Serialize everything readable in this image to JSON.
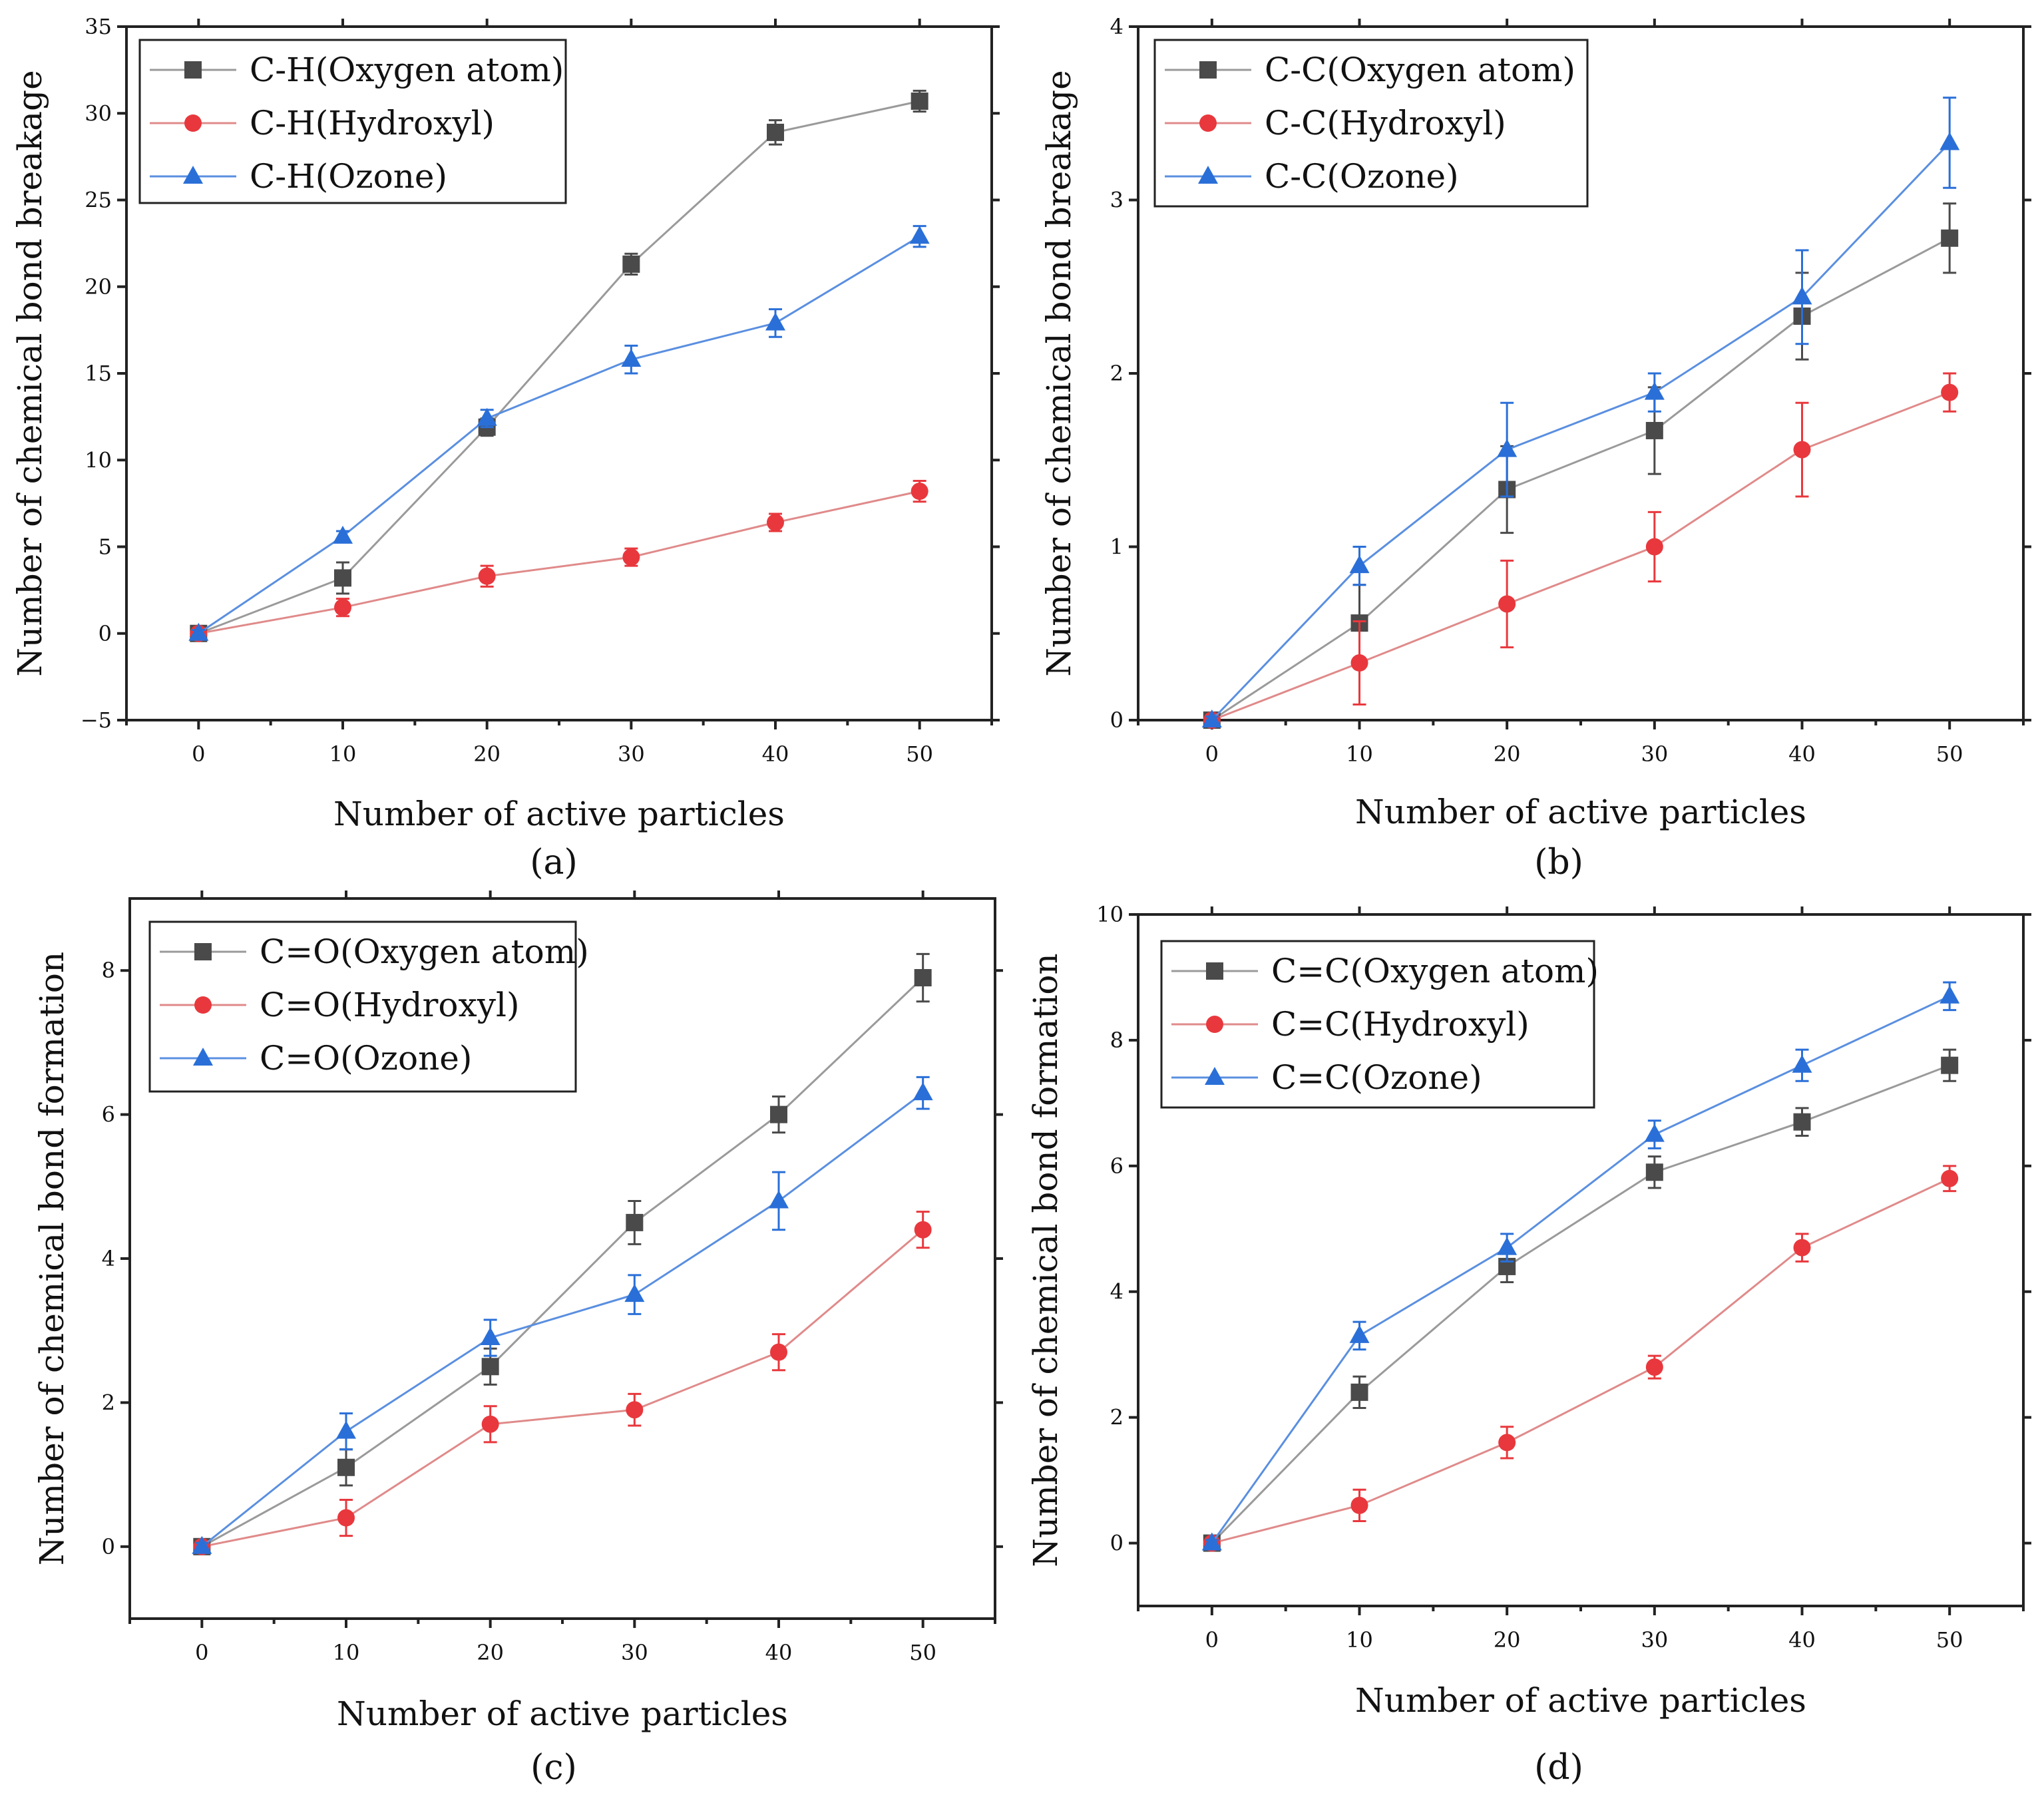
{
  "figure": {
    "panels": [
      {
        "id": "a",
        "caption": "(a)"
      },
      {
        "id": "b",
        "caption": "(b)"
      },
      {
        "id": "c",
        "caption": "(c)"
      },
      {
        "id": "d",
        "caption": "(d)"
      }
    ]
  },
  "series_style": {
    "Oxygen atom": {
      "line_color": "#9a9a9a",
      "marker_color": "#4a4a4a",
      "marker": "square"
    },
    "Hydroxyl": {
      "line_color": "#e08a8a",
      "marker_color": "#e8383d",
      "marker": "circle"
    },
    "Ozone": {
      "line_color": "#5a8fe0",
      "marker_color": "#2a6fd8",
      "marker": "triangle"
    }
  },
  "chart_data": [
    {
      "type": "line",
      "panel": "a",
      "title": "",
      "xlabel": "Number of active particles",
      "ylabel": "Number of chemical bond breakage",
      "x": [
        0,
        10,
        20,
        30,
        40,
        50
      ],
      "xlim": [
        -5,
        55
      ],
      "ylim": [
        -5,
        35
      ],
      "xticks": [
        0,
        10,
        20,
        30,
        40,
        50
      ],
      "yticks": [
        -5,
        0,
        5,
        10,
        15,
        20,
        25,
        30,
        35
      ],
      "ytick_labels": [
        "−5",
        "0",
        "5",
        "10",
        "15",
        "20",
        "25",
        "30",
        "35"
      ],
      "legend_position": "top-left",
      "series": [
        {
          "name": "C-H(Oxygen atom)",
          "key": "Oxygen atom",
          "values": [
            0,
            3.2,
            11.9,
            21.3,
            28.9,
            30.7
          ],
          "errors": [
            0.2,
            0.9,
            0.5,
            0.6,
            0.7,
            0.6
          ]
        },
        {
          "name": "C-H(Hydroxyl)",
          "key": "Hydroxyl",
          "values": [
            0,
            1.5,
            3.3,
            4.4,
            6.4,
            8.2
          ],
          "errors": [
            0.2,
            0.5,
            0.6,
            0.5,
            0.5,
            0.6
          ]
        },
        {
          "name": "C-H(Ozone)",
          "key": "Ozone",
          "values": [
            0,
            5.6,
            12.4,
            15.8,
            17.9,
            22.9
          ],
          "errors": [
            0.2,
            0.3,
            0.5,
            0.8,
            0.8,
            0.6
          ]
        }
      ]
    },
    {
      "type": "line",
      "panel": "b",
      "title": "",
      "xlabel": "Number of active particles",
      "ylabel": "Number of chemical bond breakage",
      "x": [
        0,
        10,
        20,
        30,
        40,
        50
      ],
      "xlim": [
        -5,
        55
      ],
      "ylim": [
        0,
        4
      ],
      "xticks": [
        0,
        10,
        20,
        30,
        40,
        50
      ],
      "yticks": [
        0,
        1,
        2,
        3,
        4
      ],
      "ytick_labels": [
        "0",
        "1",
        "2",
        "3",
        "4"
      ],
      "legend_position": "top-left",
      "series": [
        {
          "name": "C-C(Oxygen atom)",
          "key": "Oxygen atom",
          "values": [
            0,
            0.56,
            1.33,
            1.67,
            2.33,
            2.78
          ],
          "errors": [
            0.02,
            0.22,
            0.25,
            0.25,
            0.25,
            0.2
          ]
        },
        {
          "name": "C-C(Hydroxyl)",
          "key": "Hydroxyl",
          "values": [
            0,
            0.33,
            0.67,
            1.0,
            1.56,
            1.89
          ],
          "errors": [
            0.02,
            0.24,
            0.25,
            0.2,
            0.27,
            0.11
          ]
        },
        {
          "name": "C-C(Ozone)",
          "key": "Ozone",
          "values": [
            0,
            0.89,
            1.56,
            1.89,
            2.44,
            3.33
          ],
          "errors": [
            0.02,
            0.11,
            0.27,
            0.11,
            0.27,
            0.26
          ]
        }
      ]
    },
    {
      "type": "line",
      "panel": "c",
      "title": "",
      "xlabel": "Number of active particles",
      "ylabel": "Number of chemical bond formation",
      "x": [
        0,
        10,
        20,
        30,
        40,
        50
      ],
      "xlim": [
        -5,
        55
      ],
      "ylim": [
        -1,
        9
      ],
      "xticks": [
        0,
        10,
        20,
        30,
        40,
        50
      ],
      "yticks": [
        0,
        2,
        4,
        6,
        8
      ],
      "ytick_labels": [
        "0",
        "2",
        "4",
        "6",
        "8"
      ],
      "legend_position": "top-left",
      "series": [
        {
          "name": "C=O(Oxygen atom)",
          "key": "Oxygen atom",
          "values": [
            0,
            1.1,
            2.5,
            4.5,
            6.0,
            7.9
          ],
          "errors": [
            0.05,
            0.25,
            0.25,
            0.3,
            0.25,
            0.33
          ]
        },
        {
          "name": "C=O(Hydroxyl)",
          "key": "Hydroxyl",
          "values": [
            0,
            0.4,
            1.7,
            1.9,
            2.7,
            4.4
          ],
          "errors": [
            0.05,
            0.25,
            0.25,
            0.22,
            0.25,
            0.25
          ]
        },
        {
          "name": "C=O(Ozone)",
          "key": "Ozone",
          "values": [
            0,
            1.6,
            2.9,
            3.5,
            4.8,
            6.3
          ],
          "errors": [
            0.05,
            0.25,
            0.25,
            0.27,
            0.4,
            0.22
          ]
        }
      ]
    },
    {
      "type": "line",
      "panel": "d",
      "title": "",
      "xlabel": "Number of active particles",
      "ylabel": "Number of chemical bond formation",
      "x": [
        0,
        10,
        20,
        30,
        40,
        50
      ],
      "xlim": [
        -5,
        55
      ],
      "ylim": [
        -1,
        10
      ],
      "xticks": [
        0,
        10,
        20,
        30,
        40,
        50
      ],
      "yticks": [
        0,
        2,
        4,
        6,
        8,
        10
      ],
      "ytick_labels": [
        "0",
        "2",
        "4",
        "6",
        "8",
        "10"
      ],
      "legend_position": "top-left",
      "series": [
        {
          "name": "C=C(Oxygen atom)",
          "key": "Oxygen atom",
          "values": [
            0,
            2.4,
            4.4,
            5.9,
            6.7,
            7.6
          ],
          "errors": [
            0.05,
            0.25,
            0.25,
            0.25,
            0.22,
            0.25
          ]
        },
        {
          "name": "C=C(Hydroxyl)",
          "key": "Hydroxyl",
          "values": [
            0,
            0.6,
            1.6,
            2.8,
            4.7,
            5.8
          ],
          "errors": [
            0.05,
            0.25,
            0.25,
            0.18,
            0.22,
            0.2
          ]
        },
        {
          "name": "C=C(Ozone)",
          "key": "Ozone",
          "values": [
            0,
            3.3,
            4.7,
            6.5,
            7.6,
            8.7
          ],
          "errors": [
            0.05,
            0.22,
            0.22,
            0.22,
            0.25,
            0.22
          ]
        }
      ]
    }
  ]
}
